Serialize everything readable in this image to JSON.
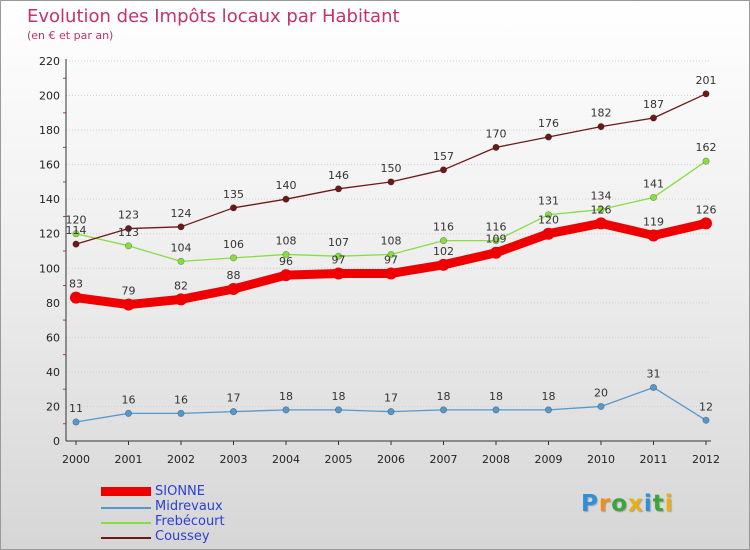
{
  "chart_data": {
    "type": "line",
    "title": "Evolution des Impôts locaux par Habitant",
    "subtitle": "(en € et par an)",
    "xlabel": "",
    "ylabel": "",
    "ylim": [
      0,
      220
    ],
    "yticks": [
      "0",
      "20",
      "40",
      "60",
      "80",
      "100",
      "120",
      "140",
      "160",
      "180",
      "200",
      "220"
    ],
    "categories": [
      "2000",
      "2001",
      "2002",
      "2003",
      "2004",
      "2005",
      "2006",
      "2007",
      "2008",
      "2009",
      "2010",
      "2011",
      "2012"
    ],
    "legend_position": "bottom-left",
    "series": [
      {
        "name": "SIONNE",
        "color": "#ee0000",
        "values": [
          83,
          79,
          82,
          88,
          96,
          97,
          97,
          102,
          109,
          120,
          126,
          119,
          126
        ],
        "labels": [
          "83",
          "79",
          "82",
          "88",
          "96",
          "97",
          "97",
          "102",
          "109",
          "120",
          "126",
          "119",
          "126"
        ]
      },
      {
        "name": "Midrevaux",
        "color": "#5599cc",
        "values": [
          11,
          16,
          16,
          17,
          18,
          18,
          17,
          18,
          18,
          18,
          20,
          31,
          12
        ],
        "labels": [
          "11",
          "16",
          "16",
          "17",
          "18",
          "18",
          "17",
          "18",
          "18",
          "18",
          "20",
          "31",
          "12"
        ]
      },
      {
        "name": "Frebécourt",
        "color": "#88dd44",
        "values": [
          120,
          113,
          104,
          106,
          108,
          107,
          108,
          116,
          116,
          131,
          134,
          141,
          162
        ],
        "labels": [
          "120",
          "113",
          "104",
          "106",
          "108",
          "107",
          "108",
          "116",
          "116",
          "131",
          "134",
          "141",
          "162"
        ]
      },
      {
        "name": "Coussey",
        "color": "#6b1a1a",
        "values": [
          114,
          123,
          124,
          135,
          140,
          146,
          150,
          157,
          170,
          176,
          182,
          187,
          201
        ],
        "labels": [
          "114",
          "123",
          "124",
          "135",
          "140",
          "146",
          "150",
          "157",
          "170",
          "176",
          "182",
          "187",
          "201"
        ]
      }
    ]
  },
  "brand": {
    "text": "Proxiti",
    "letters": [
      "P",
      "r",
      "o",
      "x",
      "i",
      "t",
      "i"
    ],
    "colors": [
      "#2e8fd8",
      "#f28c1c",
      "#3aa53a",
      "#e8b010",
      "#2e8fd8",
      "#3aa53a",
      "#e8b010"
    ]
  }
}
